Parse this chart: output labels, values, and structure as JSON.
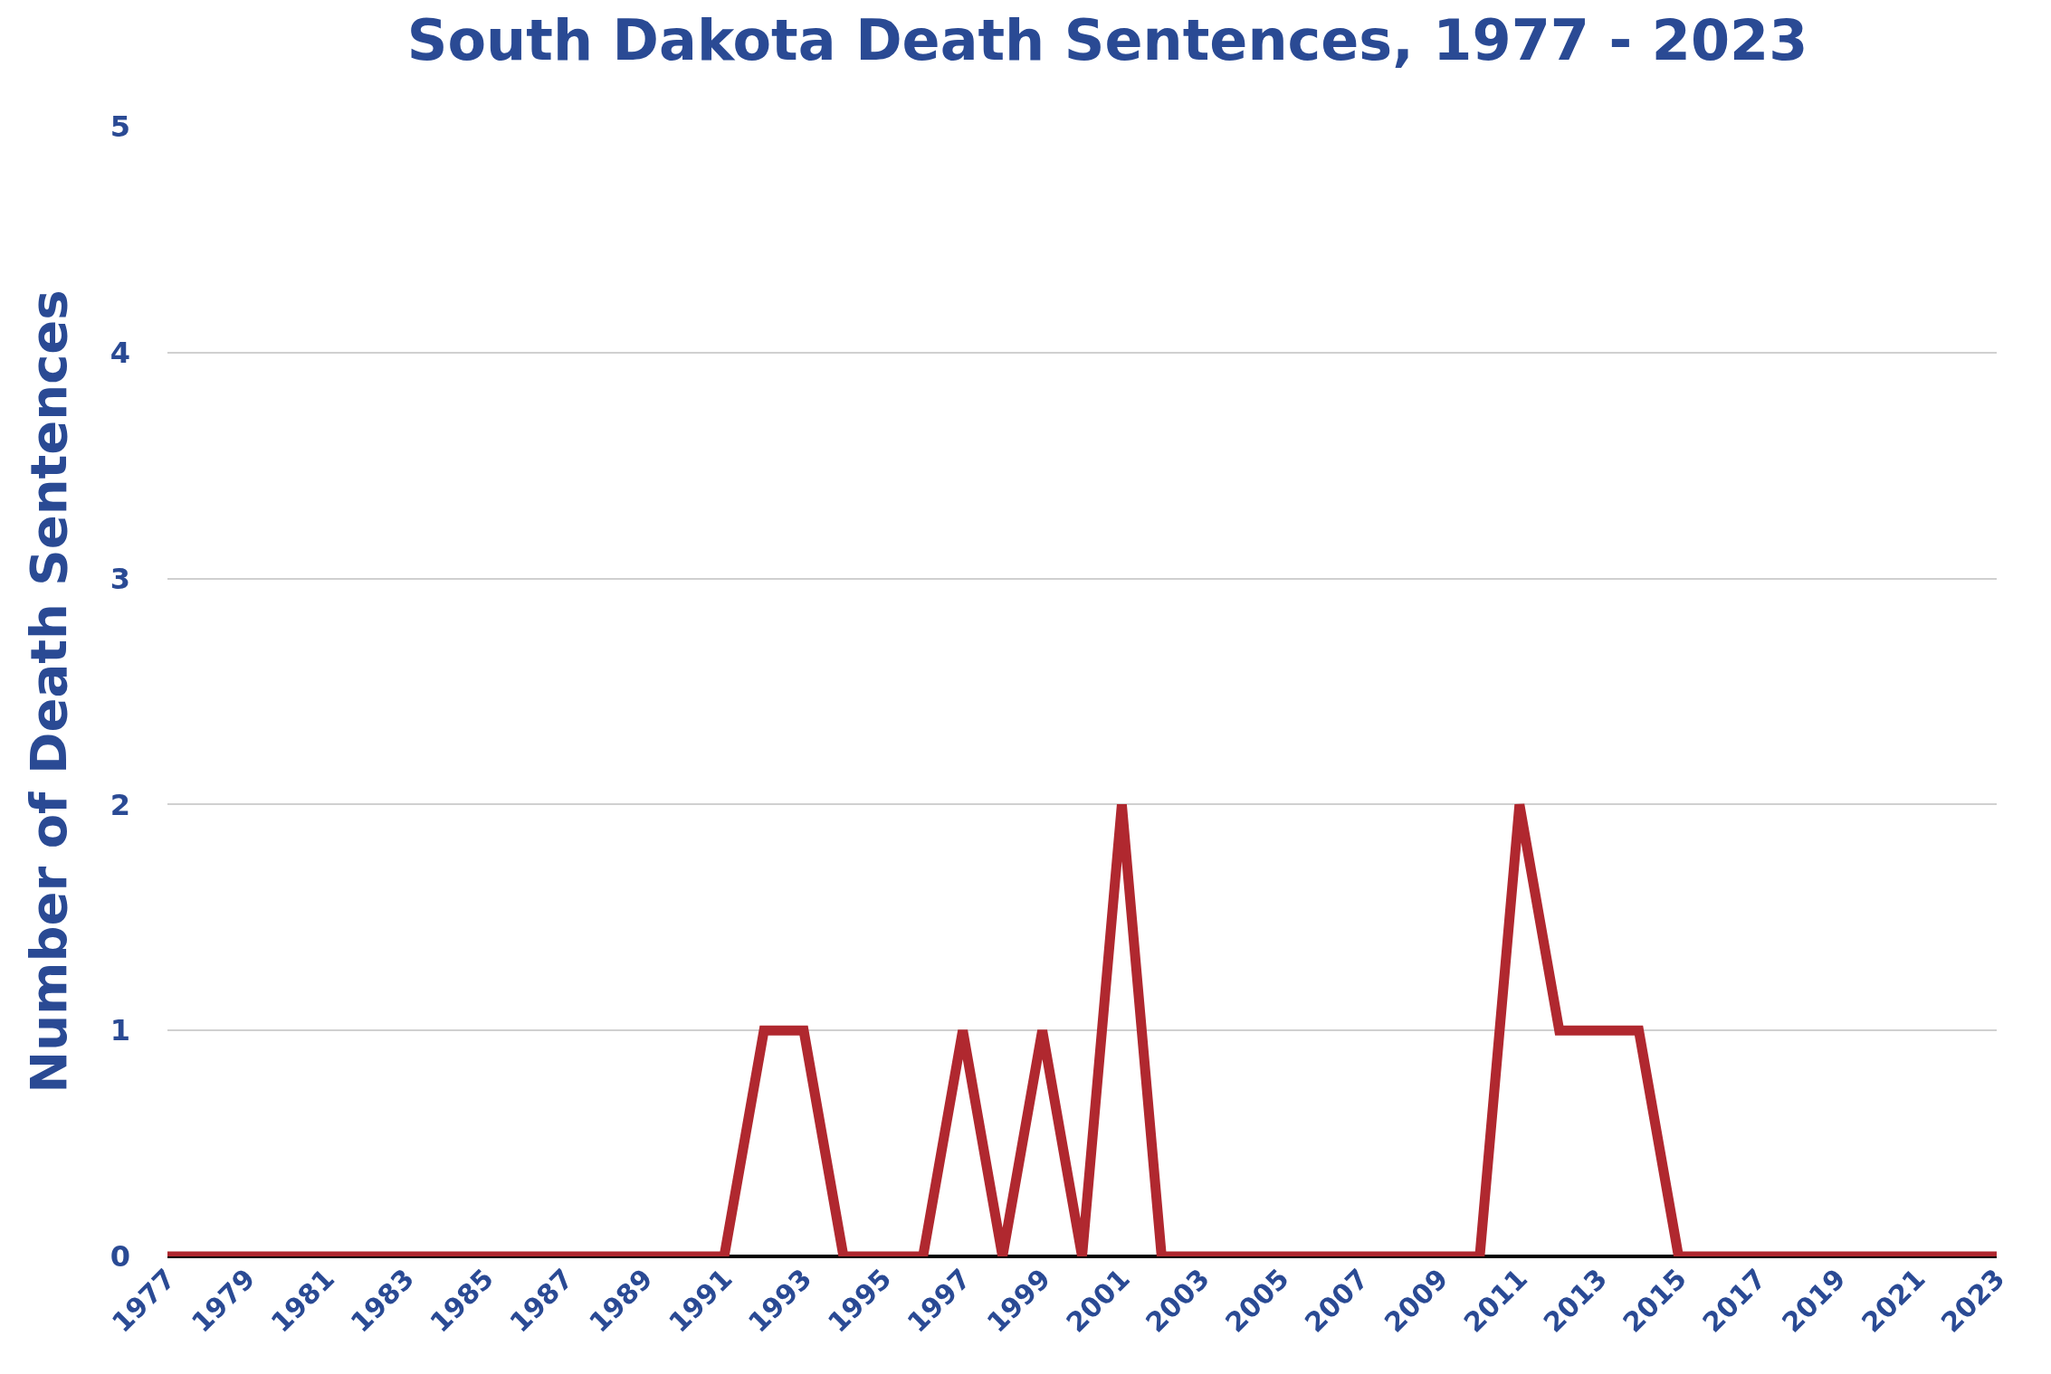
{
  "chart_data": {
    "type": "line",
    "title": "South Dakota Death Sentences, 1977 - 2023",
    "ylabel": "Number of Death Sentences",
    "x": [
      1977,
      1978,
      1979,
      1980,
      1981,
      1982,
      1983,
      1984,
      1985,
      1986,
      1987,
      1988,
      1989,
      1990,
      1991,
      1992,
      1993,
      1994,
      1995,
      1996,
      1997,
      1998,
      1999,
      2000,
      2001,
      2002,
      2003,
      2004,
      2005,
      2006,
      2007,
      2008,
      2009,
      2010,
      2011,
      2012,
      2013,
      2014,
      2015,
      2016,
      2017,
      2018,
      2019,
      2020,
      2021,
      2022,
      2023
    ],
    "series": [
      {
        "color": "#b0282f",
        "values": [
          0,
          0,
          0,
          0,
          0,
          0,
          0,
          0,
          0,
          0,
          0,
          0,
          0,
          0,
          0,
          1,
          1,
          0,
          0,
          0,
          1,
          0,
          1,
          0,
          2,
          0,
          0,
          0,
          0,
          0,
          0,
          0,
          0,
          0,
          2,
          1,
          1,
          1,
          0,
          0,
          0,
          0,
          0,
          0,
          0,
          0,
          0
        ]
      }
    ],
    "xlim": [
      1977,
      2023
    ],
    "xticks": [
      1977,
      1979,
      1981,
      1983,
      1985,
      1987,
      1989,
      1991,
      1993,
      1995,
      1997,
      1999,
      2001,
      2003,
      2005,
      2007,
      2009,
      2011,
      2013,
      2015,
      2017,
      2019,
      2021,
      2023
    ],
    "ylim": [
      0,
      5
    ],
    "yticks": [
      0,
      1,
      2,
      3,
      4,
      5
    ],
    "grid": "y",
    "marker": "none",
    "line_style": "solid"
  }
}
